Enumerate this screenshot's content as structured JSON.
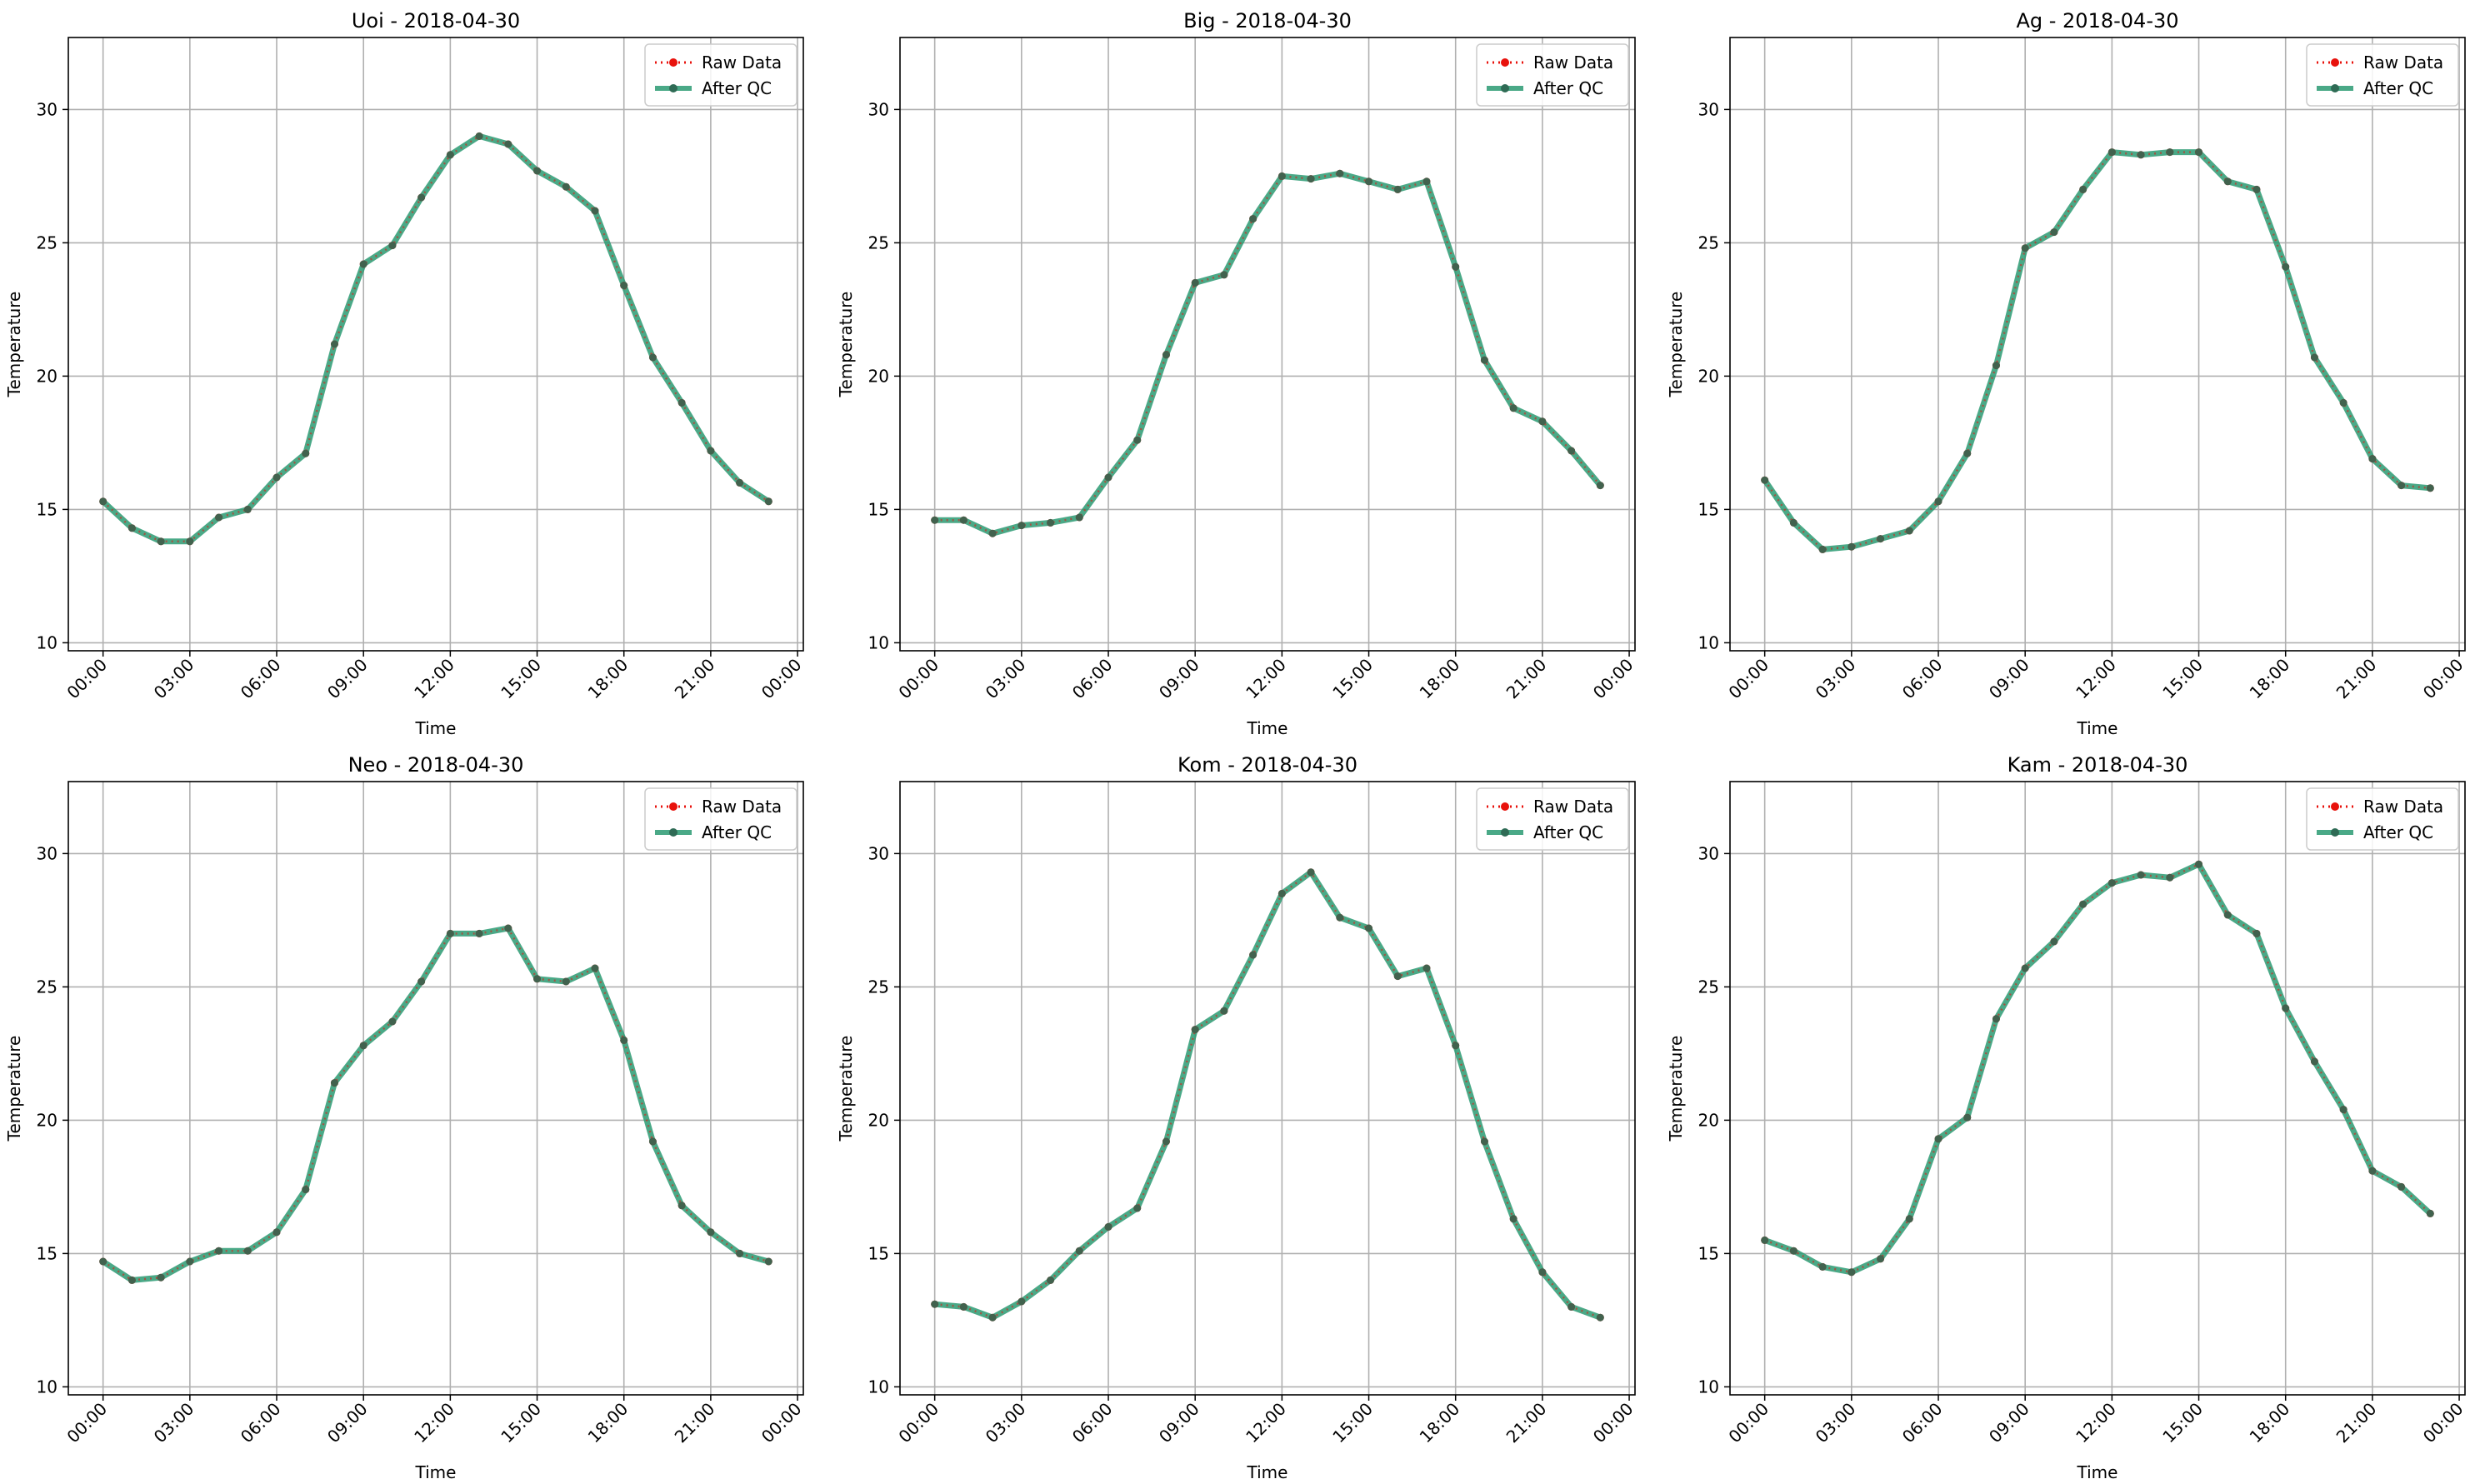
{
  "figure": {
    "legend": {
      "raw_label": "Raw Data",
      "qc_label": "After QC",
      "placement": "upper right"
    },
    "colors": {
      "raw": "#e8120c",
      "qc": "#2a9a72",
      "qc_dark": "#2f6b55",
      "grid": "#b0b0b0"
    }
  },
  "chart_data": [
    {
      "type": "line",
      "title": "Uoi - 2018-04-30",
      "xlabel": "Time",
      "ylabel": "Temperature",
      "xticks": [
        "00:00",
        "03:00",
        "06:00",
        "09:00",
        "12:00",
        "15:00",
        "18:00",
        "21:00",
        "00:00"
      ],
      "yticks": [
        10,
        15,
        20,
        25,
        30
      ],
      "ylim": [
        9.7,
        32.7
      ],
      "xlim_hours": [
        -1.2,
        24.2
      ],
      "grid": true,
      "x_hours": [
        0,
        1,
        2,
        3,
        4,
        5,
        6,
        7,
        8,
        9,
        10,
        11,
        12,
        13,
        14,
        15,
        16,
        17,
        18,
        19,
        20,
        21,
        22,
        23
      ],
      "series": [
        {
          "name": "Raw Data",
          "values": [
            15.3,
            14.3,
            13.8,
            13.8,
            14.7,
            15.0,
            16.2,
            17.1,
            21.2,
            24.2,
            24.9,
            26.7,
            28.3,
            29.0,
            28.7,
            27.7,
            27.1,
            26.2,
            23.4,
            20.7,
            19.0,
            17.2,
            16.0,
            15.3
          ]
        },
        {
          "name": "After QC",
          "values": [
            15.3,
            14.3,
            13.8,
            13.8,
            14.7,
            15.0,
            16.2,
            17.1,
            21.2,
            24.2,
            24.9,
            26.7,
            28.3,
            29.0,
            28.7,
            27.7,
            27.1,
            26.2,
            23.4,
            20.7,
            19.0,
            17.2,
            16.0,
            15.3
          ]
        }
      ]
    },
    {
      "type": "line",
      "title": "Big - 2018-04-30",
      "xlabel": "Time",
      "ylabel": "Temperature",
      "xticks": [
        "00:00",
        "03:00",
        "06:00",
        "09:00",
        "12:00",
        "15:00",
        "18:00",
        "21:00",
        "00:00"
      ],
      "yticks": [
        10,
        15,
        20,
        25,
        30
      ],
      "ylim": [
        9.7,
        32.7
      ],
      "xlim_hours": [
        -1.2,
        24.2
      ],
      "grid": true,
      "x_hours": [
        0,
        1,
        2,
        3,
        4,
        5,
        6,
        7,
        8,
        9,
        10,
        11,
        12,
        13,
        14,
        15,
        16,
        17,
        18,
        19,
        20,
        21,
        22,
        23
      ],
      "series": [
        {
          "name": "Raw Data",
          "values": [
            14.6,
            14.6,
            14.1,
            14.4,
            14.5,
            14.7,
            16.2,
            17.6,
            20.8,
            23.5,
            23.8,
            25.9,
            27.5,
            27.4,
            27.6,
            27.3,
            27.0,
            27.3,
            24.1,
            20.6,
            18.8,
            18.3,
            17.2,
            15.9
          ]
        },
        {
          "name": "After QC",
          "values": [
            14.6,
            14.6,
            14.1,
            14.4,
            14.5,
            14.7,
            16.2,
            17.6,
            20.8,
            23.5,
            23.8,
            25.9,
            27.5,
            27.4,
            27.6,
            27.3,
            27.0,
            27.3,
            24.1,
            20.6,
            18.8,
            18.3,
            17.2,
            15.9
          ]
        }
      ]
    },
    {
      "type": "line",
      "title": "Ag - 2018-04-30",
      "xlabel": "Time",
      "ylabel": "Temperature",
      "xticks": [
        "00:00",
        "03:00",
        "06:00",
        "09:00",
        "12:00",
        "15:00",
        "18:00",
        "21:00",
        "00:00"
      ],
      "yticks": [
        10,
        15,
        20,
        25,
        30
      ],
      "ylim": [
        9.7,
        32.7
      ],
      "xlim_hours": [
        -1.2,
        24.2
      ],
      "grid": true,
      "x_hours": [
        0,
        1,
        2,
        3,
        4,
        5,
        6,
        7,
        8,
        9,
        10,
        11,
        12,
        13,
        14,
        15,
        16,
        17,
        18,
        19,
        20,
        21,
        22,
        23
      ],
      "series": [
        {
          "name": "Raw Data",
          "values": [
            16.1,
            14.5,
            13.5,
            13.6,
            13.9,
            14.2,
            15.3,
            17.1,
            20.4,
            24.8,
            25.4,
            27.0,
            28.4,
            28.3,
            28.4,
            28.4,
            27.3,
            27.0,
            24.1,
            20.7,
            19.0,
            16.9,
            15.9,
            15.8
          ]
        },
        {
          "name": "After QC",
          "values": [
            16.1,
            14.5,
            13.5,
            13.6,
            13.9,
            14.2,
            15.3,
            17.1,
            20.4,
            24.8,
            25.4,
            27.0,
            28.4,
            28.3,
            28.4,
            28.4,
            27.3,
            27.0,
            24.1,
            20.7,
            19.0,
            16.9,
            15.9,
            15.8
          ]
        }
      ]
    },
    {
      "type": "line",
      "title": "Neo - 2018-04-30",
      "xlabel": "Time",
      "ylabel": "Temperature",
      "xticks": [
        "00:00",
        "03:00",
        "06:00",
        "09:00",
        "12:00",
        "15:00",
        "18:00",
        "21:00",
        "00:00"
      ],
      "yticks": [
        10,
        15,
        20,
        25,
        30
      ],
      "ylim": [
        9.7,
        32.7
      ],
      "xlim_hours": [
        -1.2,
        24.2
      ],
      "grid": true,
      "x_hours": [
        0,
        1,
        2,
        3,
        4,
        5,
        6,
        7,
        8,
        9,
        10,
        11,
        12,
        13,
        14,
        15,
        16,
        17,
        18,
        19,
        20,
        21,
        22,
        23
      ],
      "series": [
        {
          "name": "Raw Data",
          "values": [
            14.7,
            14.0,
            14.1,
            14.7,
            15.1,
            15.1,
            15.8,
            17.4,
            21.4,
            22.8,
            23.7,
            25.2,
            27.0,
            27.0,
            27.2,
            25.3,
            25.2,
            25.7,
            23.0,
            19.2,
            16.8,
            15.8,
            15.0,
            14.7
          ]
        },
        {
          "name": "After QC",
          "values": [
            14.7,
            14.0,
            14.1,
            14.7,
            15.1,
            15.1,
            15.8,
            17.4,
            21.4,
            22.8,
            23.7,
            25.2,
            27.0,
            27.0,
            27.2,
            25.3,
            25.2,
            25.7,
            23.0,
            19.2,
            16.8,
            15.8,
            15.0,
            14.7
          ]
        }
      ]
    },
    {
      "type": "line",
      "title": "Kom - 2018-04-30",
      "xlabel": "Time",
      "ylabel": "Temperature",
      "xticks": [
        "00:00",
        "03:00",
        "06:00",
        "09:00",
        "12:00",
        "15:00",
        "18:00",
        "21:00",
        "00:00"
      ],
      "yticks": [
        10,
        15,
        20,
        25,
        30
      ],
      "ylim": [
        9.7,
        32.7
      ],
      "xlim_hours": [
        -1.2,
        24.2
      ],
      "grid": true,
      "x_hours": [
        0,
        1,
        2,
        3,
        4,
        5,
        6,
        7,
        8,
        9,
        10,
        11,
        12,
        13,
        14,
        15,
        16,
        17,
        18,
        19,
        20,
        21,
        22,
        23
      ],
      "series": [
        {
          "name": "Raw Data",
          "values": [
            13.1,
            13.0,
            12.6,
            13.2,
            14.0,
            15.1,
            16.0,
            16.7,
            19.2,
            23.4,
            24.1,
            26.2,
            28.5,
            29.3,
            27.6,
            27.2,
            25.4,
            25.7,
            22.8,
            19.2,
            16.3,
            14.3,
            13.0,
            12.6
          ]
        },
        {
          "name": "After QC",
          "values": [
            13.1,
            13.0,
            12.6,
            13.2,
            14.0,
            15.1,
            16.0,
            16.7,
            19.2,
            23.4,
            24.1,
            26.2,
            28.5,
            29.3,
            27.6,
            27.2,
            25.4,
            25.7,
            22.8,
            19.2,
            16.3,
            14.3,
            13.0,
            12.6
          ]
        }
      ]
    },
    {
      "type": "line",
      "title": "Kam - 2018-04-30",
      "xlabel": "Time",
      "ylabel": "Temperature",
      "xticks": [
        "00:00",
        "03:00",
        "06:00",
        "09:00",
        "12:00",
        "15:00",
        "18:00",
        "21:00",
        "00:00"
      ],
      "yticks": [
        10,
        15,
        20,
        25,
        30
      ],
      "ylim": [
        9.7,
        32.7
      ],
      "xlim_hours": [
        -1.2,
        24.2
      ],
      "grid": true,
      "x_hours": [
        0,
        1,
        2,
        3,
        4,
        5,
        6,
        7,
        8,
        9,
        10,
        11,
        12,
        13,
        14,
        15,
        16,
        17,
        18,
        19,
        20,
        21,
        22,
        23
      ],
      "series": [
        {
          "name": "Raw Data",
          "values": [
            15.5,
            15.1,
            14.5,
            14.3,
            14.8,
            16.3,
            19.3,
            20.1,
            23.8,
            25.7,
            26.7,
            28.1,
            28.9,
            29.2,
            29.1,
            29.6,
            27.7,
            27.0,
            24.2,
            22.2,
            20.4,
            18.1,
            17.5,
            16.5
          ]
        },
        {
          "name": "After QC",
          "values": [
            15.5,
            15.1,
            14.5,
            14.3,
            14.8,
            16.3,
            19.3,
            20.1,
            23.8,
            25.7,
            26.7,
            28.1,
            28.9,
            29.2,
            29.1,
            29.6,
            27.7,
            27.0,
            24.2,
            22.2,
            20.4,
            18.1,
            17.5,
            16.5
          ]
        }
      ]
    }
  ]
}
